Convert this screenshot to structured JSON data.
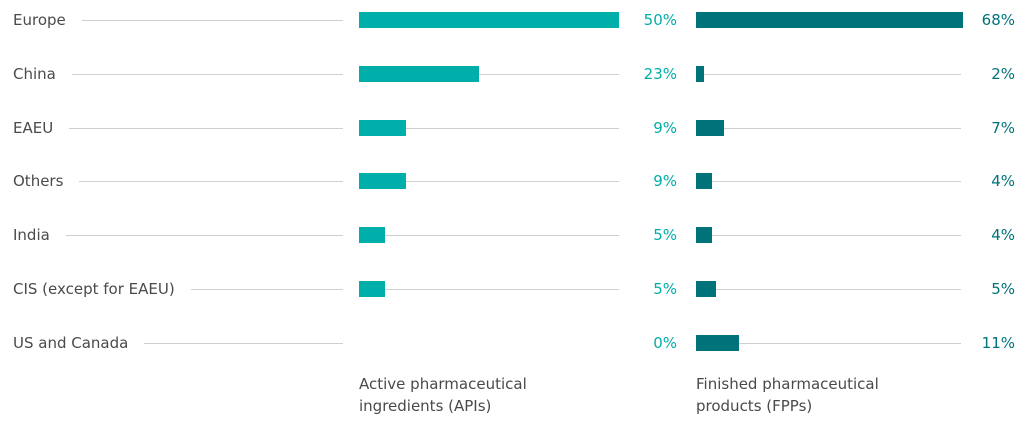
{
  "chart_data": {
    "type": "bar",
    "categories": [
      "Europe",
      "China",
      "EAEU",
      "Others",
      "India",
      "CIS (except for EAEU)",
      "US and Canada"
    ],
    "series": [
      {
        "name": "Active pharmaceutical ingredients (APIs)",
        "color": "#00aeaa",
        "values": [
          50,
          23,
          9,
          9,
          5,
          5,
          0
        ],
        "value_labels": [
          "50%",
          "23%",
          "9%",
          "9%",
          "5%",
          "5%",
          "0%"
        ]
      },
      {
        "name": "Finished pharmaceutical products (FPPs)",
        "color": "#00737a",
        "values": [
          68,
          2,
          7,
          4,
          4,
          5,
          11
        ],
        "value_labels": [
          "68%",
          "2%",
          "7%",
          "4%",
          "4%",
          "5%",
          "11%"
        ]
      }
    ]
  }
}
